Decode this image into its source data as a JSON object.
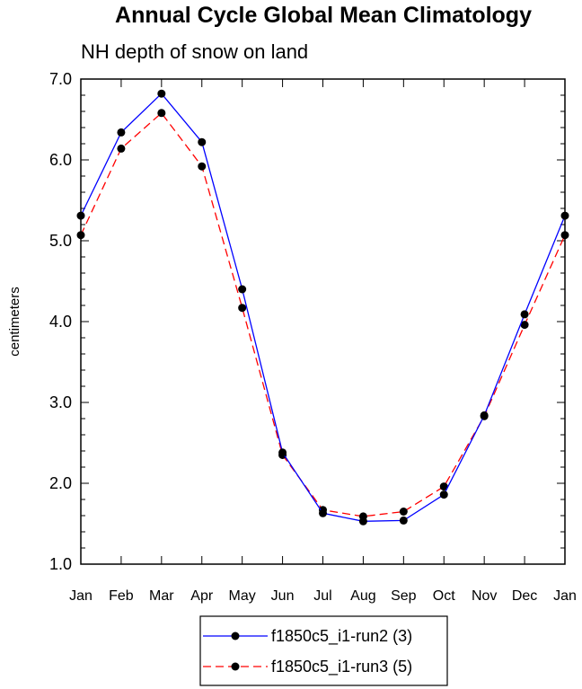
{
  "chart_data": {
    "type": "line",
    "title": "Annual Cycle Global Mean Climatology",
    "subtitle": "NH depth of snow on land",
    "xlabel": "",
    "ylabel": "centimeters",
    "categories": [
      "Jan",
      "Feb",
      "Mar",
      "Apr",
      "May",
      "Jun",
      "Jul",
      "Aug",
      "Sep",
      "Oct",
      "Nov",
      "Dec",
      "Jan"
    ],
    "ylim": [
      1.0,
      7.0
    ],
    "yticks": [
      "1.0",
      "2.0",
      "3.0",
      "4.0",
      "5.0",
      "6.0",
      "7.0"
    ],
    "series": [
      {
        "name": "f1850c5_i1-run2 (3)",
        "color": "#0000ff",
        "dash": "solid",
        "values": [
          5.31,
          6.34,
          6.82,
          6.22,
          4.4,
          2.38,
          1.63,
          1.53,
          1.54,
          1.86,
          2.84,
          4.09,
          5.31
        ]
      },
      {
        "name": "f1850c5_i1-run3 (5)",
        "color": "#ff0000",
        "dash": "dashed",
        "values": [
          5.07,
          6.14,
          6.58,
          5.92,
          4.17,
          2.35,
          1.67,
          1.59,
          1.65,
          1.96,
          2.83,
          3.96,
          5.07
        ]
      }
    ],
    "legend_position": "bottom-center"
  }
}
